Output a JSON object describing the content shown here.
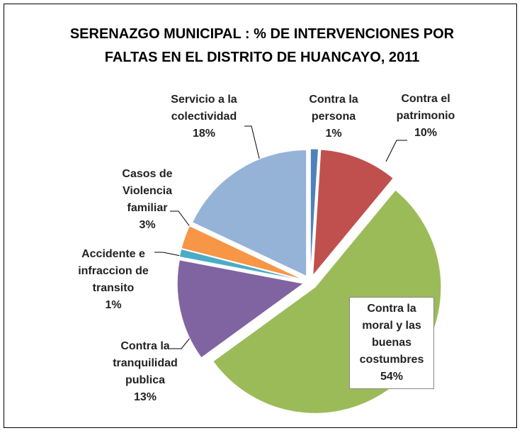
{
  "chart_data": {
    "type": "pie",
    "title": "SERENAZGO MUNICIPAL : % DE INTERVENCIONES POR FALTAS EN EL DISTRITO DE HUANCAYO, 2011",
    "categories": [
      "Contra la persona",
      "Contra el patrimonio",
      "Contra la moral y las buenas costumbres",
      "Contra la tranquilidad publica",
      "Accidente e infraccion de transito",
      "Casos de Violencia familiar",
      "Servicio a la colectividad"
    ],
    "values": [
      1,
      10,
      54,
      13,
      1,
      3,
      18
    ],
    "value_labels": [
      "1%",
      "10%",
      "54%",
      "13%",
      "1%",
      "3%",
      "18%"
    ],
    "colors": [
      "#4f81bd",
      "#c0504d",
      "#9bbb59",
      "#8064a2",
      "#4bacc6",
      "#f79646",
      "#95b3d7"
    ]
  }
}
